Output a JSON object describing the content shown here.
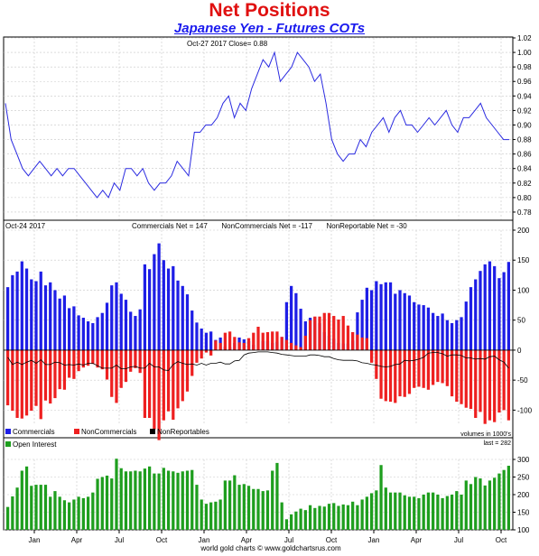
{
  "title": "Net Positions",
  "subtitle": "Japanese Yen - Futures COTs",
  "footer": "world gold charts © www.goldchartsrus.com",
  "colors": {
    "price_line": "#2a2ae0",
    "commercials": "#1e1ee6",
    "noncommercials": "#ee2020",
    "nonreportables": "#000000",
    "open_interest": "#1e9e1e",
    "grid": "#c8c8c8"
  },
  "chart_data": [
    {
      "type": "line",
      "panel": "price",
      "header": "Oct-27  2017    Close= 0.88",
      "ylim": [
        0.77,
        1.02
      ],
      "yticks": [
        "1.02",
        "1.00",
        "0.98",
        "0.96",
        "0.94",
        "0.92",
        "0.90",
        "0.88",
        "0.86",
        "0.84",
        "0.82",
        "0.80",
        "0.78"
      ],
      "grid": true,
      "values": [
        0.93,
        0.88,
        0.86,
        0.84,
        0.83,
        0.84,
        0.85,
        0.84,
        0.83,
        0.84,
        0.83,
        0.84,
        0.84,
        0.83,
        0.82,
        0.81,
        0.8,
        0.81,
        0.8,
        0.82,
        0.81,
        0.84,
        0.84,
        0.83,
        0.84,
        0.82,
        0.81,
        0.82,
        0.82,
        0.83,
        0.85,
        0.84,
        0.83,
        0.89,
        0.89,
        0.9,
        0.9,
        0.91,
        0.93,
        0.94,
        0.91,
        0.93,
        0.92,
        0.95,
        0.97,
        0.99,
        0.98,
        1.0,
        0.96,
        0.97,
        0.98,
        1.0,
        0.99,
        0.98,
        0.96,
        0.97,
        0.93,
        0.88,
        0.86,
        0.85,
        0.86,
        0.86,
        0.88,
        0.87,
        0.89,
        0.9,
        0.91,
        0.89,
        0.91,
        0.92,
        0.9,
        0.9,
        0.89,
        0.9,
        0.91,
        0.9,
        0.91,
        0.92,
        0.9,
        0.89,
        0.91,
        0.91,
        0.92,
        0.93,
        0.91,
        0.9,
        0.89,
        0.88,
        0.88
      ]
    },
    {
      "type": "bar",
      "panel": "net_positions",
      "header_date": "Oct-24  2017",
      "header_values": "Commercials Net = 147       NonCommercials Net = -117       NonReportable Net = -30",
      "ylim": [
        -125,
        200
      ],
      "yticks": [
        "200",
        "150",
        "100",
        "50",
        "0",
        "-50",
        "-100"
      ],
      "grid": true,
      "legend": [
        "Commercials",
        "NonCommercials",
        "NonReportables"
      ],
      "series": [
        {
          "name": "Commercials",
          "values": [
            105,
            125,
            131,
            148,
            136,
            118,
            115,
            131,
            108,
            113,
            100,
            86,
            91,
            70,
            73,
            58,
            54,
            48,
            45,
            55,
            62,
            79,
            108,
            113,
            94,
            84,
            64,
            57,
            68,
            143,
            135,
            160,
            178,
            150,
            136,
            140,
            116,
            107,
            93,
            66,
            46,
            36,
            29,
            31,
            17,
            21,
            6,
            5,
            12,
            21,
            18,
            15,
            9,
            0,
            15,
            15,
            12,
            14,
            22,
            80,
            107,
            95,
            69,
            48,
            54,
            55,
            45,
            30,
            24,
            19,
            12,
            11,
            11,
            16,
            63,
            84,
            104,
            100,
            115,
            110,
            113,
            113,
            94,
            100,
            95,
            91,
            80,
            76,
            75,
            71,
            62,
            57,
            61,
            50,
            45,
            50,
            55,
            81,
            105,
            118,
            132,
            143,
            148,
            140,
            120,
            130,
            147
          ]
        },
        {
          "name": "NonCommercials",
          "values": [
            -92,
            -101,
            -113,
            -114,
            -109,
            -101,
            -93,
            -115,
            -84,
            -89,
            -80,
            -65,
            -66,
            -46,
            -48,
            -35,
            -29,
            -26,
            -23,
            -29,
            -32,
            -49,
            -78,
            -88,
            -63,
            -53,
            -36,
            -30,
            -38,
            -113,
            -113,
            -132,
            -150,
            -117,
            -102,
            -116,
            -97,
            -85,
            -69,
            -43,
            -21,
            -14,
            -4,
            -9,
            16,
            12,
            29,
            31,
            22,
            13,
            12,
            20,
            29,
            39,
            29,
            30,
            31,
            31,
            22,
            17,
            12,
            8,
            5,
            24,
            50,
            56,
            56,
            62,
            62,
            57,
            51,
            57,
            41,
            30,
            26,
            21,
            20,
            -21,
            -48,
            -81,
            -85,
            -86,
            -88,
            -77,
            -78,
            -73,
            -63,
            -61,
            -63,
            -66,
            -58,
            -53,
            -55,
            -60,
            -77,
            -86,
            -90,
            -96,
            -98,
            -113,
            -103,
            -123,
            -117,
            -120,
            -104,
            -100,
            -117
          ]
        },
        {
          "name": "NonReportables",
          "values": [
            -12,
            -24,
            -20,
            -24,
            -20,
            -17,
            -22,
            -16,
            -24,
            -24,
            -20,
            -21,
            -25,
            -24,
            -25,
            -23,
            -25,
            -22,
            -22,
            -26,
            -30,
            -30,
            -30,
            -25,
            -31,
            -31,
            -28,
            -27,
            -30,
            -30,
            -22,
            -28,
            -28,
            -33,
            -34,
            -24,
            -19,
            -22,
            -24,
            -23,
            -25,
            -22,
            -25,
            -22,
            -22,
            -20,
            -23,
            -23,
            -18,
            -17,
            -8,
            -5,
            -4,
            -3,
            -3,
            -3,
            -4,
            -5,
            -7,
            -8,
            -9,
            -10,
            -10,
            -10,
            -8,
            -8,
            -9,
            -11,
            -11,
            -14,
            -16,
            -17,
            -17,
            -17,
            -18,
            -21,
            -22,
            -24,
            -25,
            -27,
            -28,
            -27,
            -24,
            -23,
            -17,
            -18,
            -17,
            -15,
            -12,
            -5,
            -4,
            -4,
            -6,
            -10,
            -8,
            -8,
            -9,
            -13,
            -13,
            -15,
            -14,
            -15,
            -11,
            -10,
            -16,
            -20,
            -30
          ]
        }
      ],
      "x_count": 107
    },
    {
      "type": "bar",
      "panel": "open_interest",
      "legend": [
        "Open Interest"
      ],
      "note_units": "volumes in 1000's",
      "note_last": "last = 282",
      "ylim": [
        100,
        300
      ],
      "yticks": [
        "300",
        "250",
        "200",
        "150",
        "100"
      ],
      "grid": true,
      "x_labels": [
        "Jan",
        "Apr",
        "Jul",
        "Oct",
        "Jan",
        "Apr",
        "Jul",
        "Oct",
        "Jan",
        "Apr",
        "Jul",
        "Oct"
      ],
      "series": [
        {
          "name": "Open Interest",
          "values": [
            165,
            195,
            220,
            268,
            280,
            225,
            228,
            228,
            228,
            194,
            210,
            194,
            184,
            178,
            186,
            194,
            190,
            194,
            206,
            245,
            250,
            254,
            246,
            302,
            275,
            266,
            266,
            268,
            266,
            274,
            280,
            260,
            260,
            276,
            268,
            266,
            262,
            266,
            268,
            270,
            228,
            186,
            174,
            178,
            180,
            186,
            240,
            240,
            255,
            228,
            230,
            225,
            216,
            216,
            210,
            212,
            268,
            290,
            178,
            130,
            144,
            152,
            160,
            156,
            170,
            162,
            168,
            166,
            174,
            176,
            168,
            172,
            170,
            180,
            170,
            186,
            194,
            204,
            212,
            284,
            220,
            206,
            206,
            206,
            198,
            194,
            194,
            190,
            200,
            206,
            206,
            200,
            190,
            196,
            200,
            210,
            200,
            240,
            230,
            250,
            246,
            226,
            240,
            248,
            260,
            270,
            282
          ]
        }
      ]
    }
  ]
}
